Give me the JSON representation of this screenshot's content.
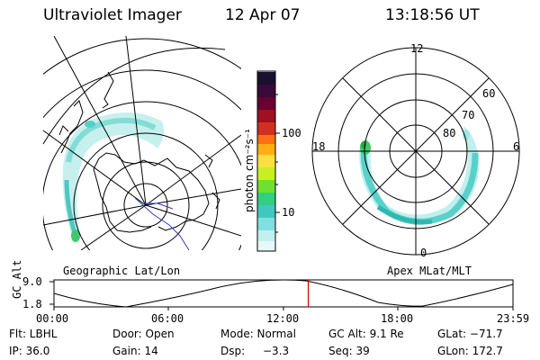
{
  "header": {
    "instrument": "Ultraviolet Imager",
    "date": "12 Apr 07",
    "time": "13:18:56 UT"
  },
  "geo_panel": {
    "label": "Geographic Lat/Lon"
  },
  "colorbar": {
    "unit_label": "photon cm⁻²s⁻¹",
    "ticks": [
      "100",
      "10"
    ],
    "colors": [
      "#1a1030",
      "#3a0a3a",
      "#6a0030",
      "#a01020",
      "#d03020",
      "#ff7010",
      "#ffb010",
      "#ffe040",
      "#c8f020",
      "#70e030",
      "#30d080",
      "#40c8c0",
      "#80e0e0",
      "#c0f0f0",
      "#e6f8f8"
    ]
  },
  "polar_panel": {
    "label": "Apex MLat/MLT",
    "mlt_labels": {
      "top": "12",
      "left": "18",
      "right": "6",
      "bottom": "0"
    },
    "lat_labels": [
      "60",
      "70",
      "80"
    ]
  },
  "timeline": {
    "axis_label": "GC Alt",
    "y_ticks": [
      "9.0",
      "1.8"
    ],
    "x_ticks": [
      "00:00",
      "06:00",
      "12:00",
      "18:00",
      "23:59"
    ],
    "current_time_fraction": 0.554,
    "marker_color": "#cc0000"
  },
  "info": {
    "filter": "Flt: LBHL",
    "door": "Door: Open",
    "mode": "Mode: Normal",
    "gc_alt": "GC Alt: 9.1 Re",
    "glat": "GLat: −71.7",
    "ip": "IP: 36.0",
    "gain": "Gain: 14",
    "dsp_label": "Dsp:",
    "dsp_value": "−3.3",
    "seq": "Seq: 39",
    "glon": "GLon: 172.7"
  }
}
